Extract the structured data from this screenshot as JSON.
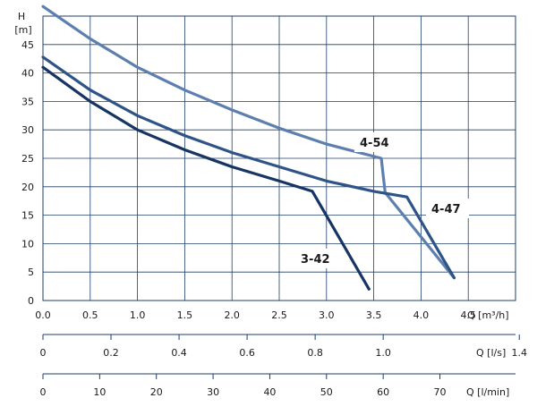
{
  "chart_data": {
    "type": "line",
    "y_axis": {
      "label_top": "H",
      "label_unit": "[m]",
      "range": [
        0,
        50
      ],
      "ticks": [
        0,
        5,
        10,
        15,
        20,
        25,
        30,
        35,
        40,
        45
      ]
    },
    "x_axes": [
      {
        "unit": "Q [m³/h]",
        "range": [
          0,
          5
        ],
        "ticks": [
          0.0,
          0.5,
          1.0,
          1.5,
          2.0,
          2.5,
          3.0,
          3.5,
          4.0,
          4.5
        ],
        "tick_labels": [
          "0.0",
          "0.5",
          "1.0",
          "1.5",
          "2.0",
          "2.5",
          "3.0",
          "3.5",
          "4.0",
          "4.5"
        ]
      },
      {
        "unit": "Q [l/s]",
        "tick_labels": [
          "0",
          "0.2",
          "0.4",
          "0.6",
          "0.8",
          "1.0",
          "1.4"
        ],
        "ticks_l_s": [
          0,
          0.2,
          0.4,
          0.6,
          0.8,
          1.0,
          1.4
        ]
      },
      {
        "unit": "Q [l/min]",
        "tick_labels": [
          "0",
          "10",
          "20",
          "30",
          "40",
          "50",
          "60",
          "70"
        ],
        "ticks_l_min": [
          0,
          10,
          20,
          30,
          40,
          50,
          60,
          70
        ]
      }
    ],
    "grid": true,
    "series": [
      {
        "name": "4-54",
        "color": "#5d7fb0",
        "points": [
          [
            0,
            51.7
          ],
          [
            0.5,
            46.0
          ],
          [
            1.0,
            41.0
          ],
          [
            1.5,
            37.0
          ],
          [
            2.0,
            33.5
          ],
          [
            2.5,
            30.3
          ],
          [
            3.0,
            27.5
          ],
          [
            3.58,
            25.0
          ],
          [
            3.62,
            19.0
          ],
          [
            4.35,
            4.0
          ]
        ]
      },
      {
        "name": "4-47",
        "color": "#2e5487",
        "points": [
          [
            0,
            42.8
          ],
          [
            0.5,
            37.0
          ],
          [
            1.0,
            32.5
          ],
          [
            1.5,
            29.0
          ],
          [
            2.0,
            26.0
          ],
          [
            2.5,
            23.5
          ],
          [
            3.0,
            21.0
          ],
          [
            3.5,
            19.2
          ],
          [
            3.85,
            18.2
          ],
          [
            4.35,
            4.0
          ]
        ]
      },
      {
        "name": "3-42",
        "color": "#173563",
        "points": [
          [
            0,
            41.0
          ],
          [
            0.5,
            35.0
          ],
          [
            1.0,
            30.0
          ],
          [
            1.5,
            26.5
          ],
          [
            2.0,
            23.5
          ],
          [
            2.5,
            21.0
          ],
          [
            2.85,
            19.2
          ],
          [
            3.45,
            2.0
          ]
        ]
      }
    ]
  }
}
